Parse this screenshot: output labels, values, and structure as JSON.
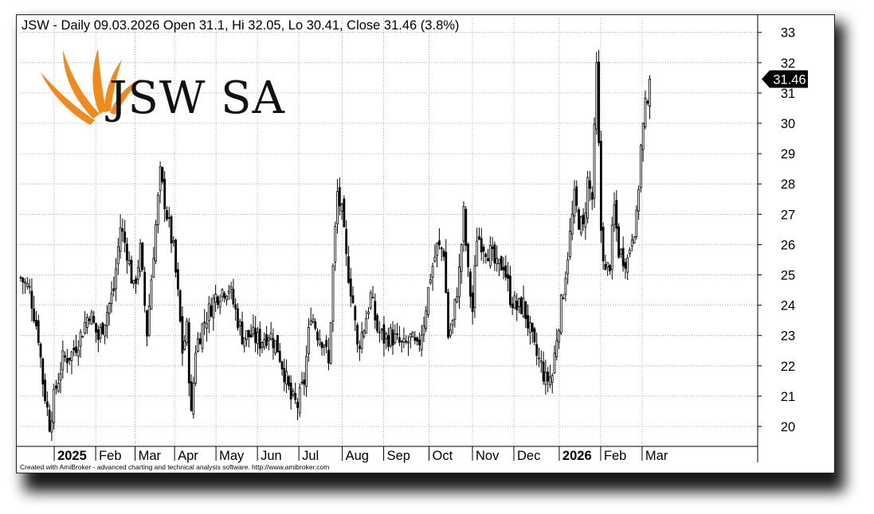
{
  "title": "JSW - Daily 09.03.2026 Open 31.1, Hi 32.05, Lo 30.41, Close 31.46 (3.8%)",
  "footer": "Created with AmiBroker - advanced charting and technical analysis software. http://www.amibroker.com",
  "logo": {
    "text": "JSW SA",
    "accent": "#f08a1c"
  },
  "chart_data": {
    "type": "candlestick",
    "ylim": [
      19.4,
      33.3
    ],
    "yticks": [
      20,
      21,
      22,
      23,
      24,
      25,
      26,
      27,
      28,
      29,
      30,
      31,
      32,
      33
    ],
    "xtick_labels": [
      "2025",
      "Feb",
      "Mar",
      "Apr",
      "May",
      "Jun",
      "Jul",
      "Aug",
      "Sep",
      "Oct",
      "Nov",
      "Dec",
      "2026",
      "Feb",
      "Mar"
    ],
    "bold_ticks": [
      "2025",
      "2026"
    ],
    "last_price_label": "31.46",
    "last_price": 31.46,
    "grid": true,
    "colors": {
      "up": "#ffffff",
      "down": "#000000",
      "line": "#000000",
      "grid": "#9a9a9a"
    },
    "anchors": [
      {
        "x": 0,
        "y": 24.9
      },
      {
        "x": 4,
        "y": 24.5
      },
      {
        "x": 8,
        "y": 23.0
      },
      {
        "x": 10,
        "y": 21.5
      },
      {
        "x": 13,
        "y": 20.1
      },
      {
        "x": 16,
        "y": 21.3
      },
      {
        "x": 19,
        "y": 22.2
      },
      {
        "x": 23,
        "y": 22.4
      },
      {
        "x": 27,
        "y": 23.0
      },
      {
        "x": 31,
        "y": 23.8
      },
      {
        "x": 35,
        "y": 22.9
      },
      {
        "x": 39,
        "y": 23.8
      },
      {
        "x": 42,
        "y": 24.5
      },
      {
        "x": 45,
        "y": 26.6
      },
      {
        "x": 48,
        "y": 25.8
      },
      {
        "x": 51,
        "y": 24.5
      },
      {
        "x": 54,
        "y": 25.8
      },
      {
        "x": 57,
        "y": 23.1
      },
      {
        "x": 60,
        "y": 25.8
      },
      {
        "x": 63,
        "y": 28.3
      },
      {
        "x": 66,
        "y": 27.0
      },
      {
        "x": 69,
        "y": 25.8
      },
      {
        "x": 71,
        "y": 24.3
      },
      {
        "x": 73,
        "y": 22.5
      },
      {
        "x": 75,
        "y": 23.2
      },
      {
        "x": 77,
        "y": 20.3
      },
      {
        "x": 79,
        "y": 22.6
      },
      {
        "x": 82,
        "y": 23.3
      },
      {
        "x": 85,
        "y": 23.8
      },
      {
        "x": 88,
        "y": 24.3
      },
      {
        "x": 91,
        "y": 24.5
      },
      {
        "x": 94,
        "y": 24.6
      },
      {
        "x": 97,
        "y": 23.8
      },
      {
        "x": 100,
        "y": 23.0
      },
      {
        "x": 104,
        "y": 23.0
      },
      {
        "x": 108,
        "y": 22.8
      },
      {
        "x": 112,
        "y": 23.1
      },
      {
        "x": 116,
        "y": 22.6
      },
      {
        "x": 119,
        "y": 21.8
      },
      {
        "x": 122,
        "y": 20.9
      },
      {
        "x": 125,
        "y": 20.7
      },
      {
        "x": 128,
        "y": 21.5
      },
      {
        "x": 131,
        "y": 23.8
      },
      {
        "x": 134,
        "y": 23.1
      },
      {
        "x": 137,
        "y": 22.8
      },
      {
        "x": 139,
        "y": 22.0
      },
      {
        "x": 141,
        "y": 25.2
      },
      {
        "x": 143,
        "y": 27.7
      },
      {
        "x": 145,
        "y": 27.0
      },
      {
        "x": 147,
        "y": 25.5
      },
      {
        "x": 150,
        "y": 24.1
      },
      {
        "x": 152,
        "y": 22.6
      },
      {
        "x": 155,
        "y": 23.3
      },
      {
        "x": 158,
        "y": 24.3
      },
      {
        "x": 161,
        "y": 23.2
      },
      {
        "x": 164,
        "y": 22.9
      },
      {
        "x": 167,
        "y": 23.0
      },
      {
        "x": 170,
        "y": 22.8
      },
      {
        "x": 173,
        "y": 22.6
      },
      {
        "x": 176,
        "y": 22.9
      },
      {
        "x": 179,
        "y": 22.5
      },
      {
        "x": 182,
        "y": 23.5
      },
      {
        "x": 185,
        "y": 25.0
      },
      {
        "x": 188,
        "y": 25.9
      },
      {
        "x": 191,
        "y": 25.8
      },
      {
        "x": 193,
        "y": 23.0
      },
      {
        "x": 195,
        "y": 23.4
      },
      {
        "x": 198,
        "y": 25.1
      },
      {
        "x": 200,
        "y": 27.0
      },
      {
        "x": 202,
        "y": 25.0
      },
      {
        "x": 204,
        "y": 23.8
      },
      {
        "x": 206,
        "y": 26.3
      },
      {
        "x": 209,
        "y": 26.0
      },
      {
        "x": 212,
        "y": 25.7
      },
      {
        "x": 215,
        "y": 25.2
      },
      {
        "x": 218,
        "y": 25.4
      },
      {
        "x": 221,
        "y": 24.3
      },
      {
        "x": 224,
        "y": 23.9
      },
      {
        "x": 227,
        "y": 24.0
      },
      {
        "x": 230,
        "y": 23.1
      },
      {
        "x": 232,
        "y": 22.5
      },
      {
        "x": 235,
        "y": 22.0
      },
      {
        "x": 237,
        "y": 21.5
      },
      {
        "x": 240,
        "y": 21.7
      },
      {
        "x": 242,
        "y": 23.0
      },
      {
        "x": 245,
        "y": 24.5
      },
      {
        "x": 248,
        "y": 26.3
      },
      {
        "x": 250,
        "y": 27.5
      },
      {
        "x": 252,
        "y": 26.8
      },
      {
        "x": 254,
        "y": 26.5
      },
      {
        "x": 256,
        "y": 28.1
      },
      {
        "x": 258,
        "y": 27.5
      },
      {
        "x": 260,
        "y": 31.8
      },
      {
        "x": 262,
        "y": 26.5
      },
      {
        "x": 264,
        "y": 25.0
      },
      {
        "x": 266,
        "y": 25.4
      },
      {
        "x": 268,
        "y": 27.2
      },
      {
        "x": 270,
        "y": 25.8
      },
      {
        "x": 272,
        "y": 25.6
      },
      {
        "x": 274,
        "y": 25.5
      },
      {
        "x": 276,
        "y": 26.4
      },
      {
        "x": 278,
        "y": 26.8
      },
      {
        "x": 280,
        "y": 29.2
      },
      {
        "x": 282,
        "y": 30.5
      },
      {
        "x": 284,
        "y": 31.46
      }
    ]
  }
}
